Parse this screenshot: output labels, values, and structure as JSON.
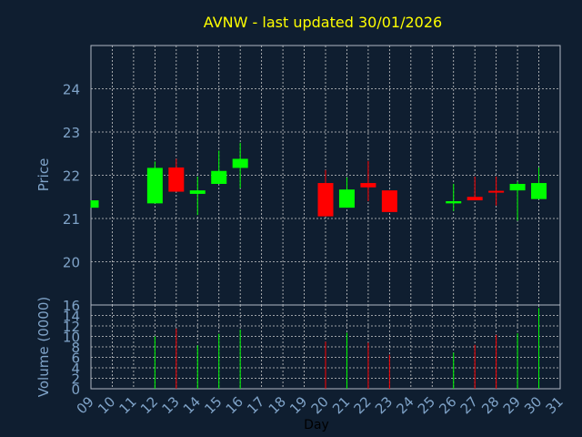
{
  "chart_data": {
    "type": "candlestick",
    "title": "AVNW - last updated 30/01/2026",
    "xlabel": "Day",
    "ylabel_price": "Price",
    "ylabel_volume": "Volume (0000)",
    "x_ticks": [
      "09",
      "10",
      "11",
      "12",
      "13",
      "14",
      "15",
      "16",
      "17",
      "18",
      "19",
      "20",
      "21",
      "22",
      "23",
      "24",
      "25",
      "26",
      "27",
      "28",
      "29",
      "30",
      "31"
    ],
    "price_ticks": [
      20,
      21,
      22,
      23,
      24
    ],
    "price_ylim": [
      19.0,
      25.0
    ],
    "volume_ticks": [
      0,
      2,
      4,
      6,
      8,
      10,
      12,
      14,
      16
    ],
    "volume_ylim": [
      0,
      16
    ],
    "grid": true,
    "colors": {
      "background": "#0f1e30",
      "up": "#00ff00",
      "down": "#ff0000",
      "title": "#ffff00",
      "axis_text": "#7fa3c8",
      "grid": "#cccccc",
      "frame": "#b0b8c4"
    },
    "candles": [
      {
        "day": 9,
        "open": 21.25,
        "close": 21.42,
        "high": 21.42,
        "low": 21.25,
        "volume": 0
      },
      {
        "day": 12,
        "open": 21.35,
        "close": 22.17,
        "high": 22.32,
        "low": 21.35,
        "volume": 10.0
      },
      {
        "day": 13,
        "open": 22.18,
        "close": 21.62,
        "high": 22.38,
        "low": 21.62,
        "volume": 11.5
      },
      {
        "day": 14,
        "open": 21.57,
        "close": 21.65,
        "high": 21.97,
        "low": 21.08,
        "volume": 8.3
      },
      {
        "day": 15,
        "open": 21.8,
        "close": 22.1,
        "high": 22.57,
        "low": 21.8,
        "volume": 10.5
      },
      {
        "day": 16,
        "open": 22.17,
        "close": 22.38,
        "high": 22.75,
        "low": 21.7,
        "volume": 11.3
      },
      {
        "day": 20,
        "open": 21.82,
        "close": 21.05,
        "high": 22.12,
        "low": 21.05,
        "volume": 9.0
      },
      {
        "day": 21,
        "open": 21.25,
        "close": 21.67,
        "high": 21.95,
        "low": 21.25,
        "volume": 10.7
      },
      {
        "day": 22,
        "open": 21.82,
        "close": 21.72,
        "high": 22.33,
        "low": 21.4,
        "volume": 8.8
      },
      {
        "day": 23,
        "open": 21.65,
        "close": 21.15,
        "high": 21.65,
        "low": 21.15,
        "volume": 6.5
      },
      {
        "day": 26,
        "open": 21.35,
        "close": 21.4,
        "high": 21.8,
        "low": 21.17,
        "volume": 6.9
      },
      {
        "day": 27,
        "open": 21.5,
        "close": 21.42,
        "high": 21.97,
        "low": 21.42,
        "volume": 8.4
      },
      {
        "day": 28,
        "open": 21.64,
        "close": 21.6,
        "high": 21.97,
        "low": 21.3,
        "volume": 10.3
      },
      {
        "day": 29,
        "open": 21.65,
        "close": 21.8,
        "high": 21.85,
        "low": 20.95,
        "volume": 10.6
      },
      {
        "day": 30,
        "open": 21.45,
        "close": 21.82,
        "high": 22.18,
        "low": 21.45,
        "volume": 15.4
      }
    ]
  }
}
